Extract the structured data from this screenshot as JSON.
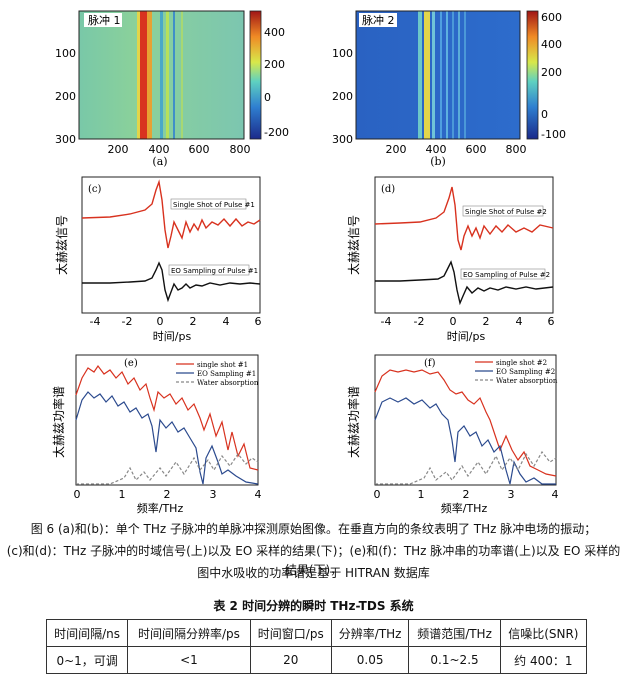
{
  "panels": {
    "a": {
      "label": "(a)",
      "tag": "脉冲 1",
      "xticks": [
        "200",
        "400",
        "600",
        "800"
      ],
      "yticks": [
        "100",
        "200",
        "300"
      ],
      "cbar_ticks": [
        "400",
        "200",
        "0",
        "-200"
      ]
    },
    "b": {
      "label": "(b)",
      "tag": "脉冲 2",
      "xticks": [
        "200",
        "400",
        "600",
        "800"
      ],
      "yticks": [
        "100",
        "200",
        "300"
      ],
      "cbar_ticks": [
        "600",
        "400",
        "200",
        "0",
        "-100"
      ]
    },
    "c": {
      "label": "(c)",
      "ylabel": "太赫兹信号",
      "xlabel": "时间/ps",
      "legend_top": "Single Shot of Pulse #1",
      "legend_bottom": "EO Sampling of Pulse #1",
      "xticks": [
        "-4",
        "-2",
        "0",
        "2",
        "4",
        "6"
      ]
    },
    "d": {
      "label": "(d)",
      "ylabel": "太赫兹信号",
      "xlabel": "时间/ps",
      "legend_top": "Single Shot of Pulse #2",
      "legend_bottom": "EO Sampling of Pulse #2",
      "xticks": [
        "-4",
        "-2",
        "0",
        "2",
        "4",
        "6"
      ]
    },
    "e": {
      "label": "(e)",
      "ylabel": "太赫兹功率谱",
      "xlabel": "频率/THz",
      "legend": [
        "single shot #1",
        "EO Sampling #1",
        "Water absorption"
      ],
      "xticks": [
        "0",
        "1",
        "2",
        "3",
        "4"
      ]
    },
    "f": {
      "label": "(f)",
      "ylabel": "太赫兹功率谱",
      "xlabel": "频率/THz",
      "legend": [
        "single shot #2",
        "EO Sampling #2",
        "Water absorption"
      ],
      "xticks": [
        "0",
        "1",
        "2",
        "3",
        "4"
      ]
    }
  },
  "caption": {
    "line1": "图 6   (a)和(b)：单个 THz 子脉冲的单脉冲探测原始图像。在垂直方向的条纹表明了 THz 脉冲电场的振动；",
    "line2": "(c)和(d)：THz 子脉冲的时域信号(上)以及 EO 采样的结果(下)；(e)和(f)：THz 脉冲串的功率谱(上)以及 EO 采样的结果(下)，",
    "line3": "图中水吸收的功率谱是基于 HITRAN 数据库"
  },
  "table": {
    "title": "表 2    时间分辨的瞬时 THz-TDS 系统",
    "headers": [
      "时间间隔/ns",
      "时间间隔分辨率/ps",
      "时间窗口/ps",
      "分辨率/THz",
      "频谱范围/THz",
      "信噪比(SNR)"
    ],
    "row": [
      "0~1，可调",
      "<1",
      "20",
      "0.05",
      "0.1~2.5",
      "约 400：1"
    ]
  },
  "colors": {
    "red": "#d8321f",
    "blue": "#2b4a8e",
    "black": "#111111",
    "gray": "#888888"
  }
}
